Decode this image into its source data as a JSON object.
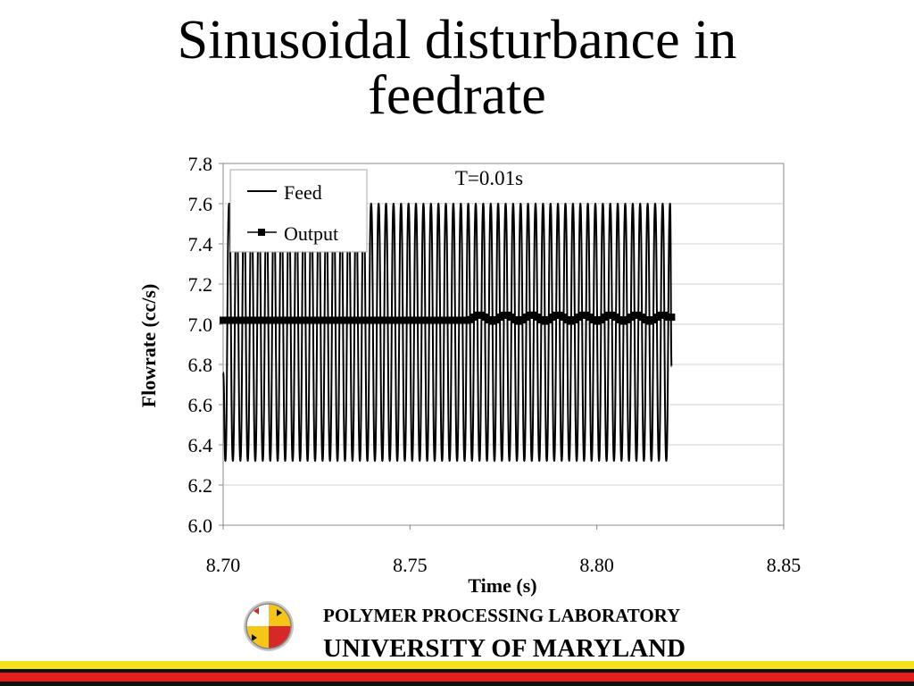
{
  "slide": {
    "title_line1": "Sinusoidal disturbance in",
    "title_line2": "feedrate"
  },
  "footer": {
    "lab": "POLYMER PROCESSING LABORATORY",
    "university": "UNIVERSITY OF MARYLAND",
    "logo_icon": "maryland-flag-seal-icon",
    "stripe_colors": [
      "#f5e11e",
      "#111111",
      "#e51d1d",
      "#111111"
    ]
  },
  "chart_data": {
    "type": "line",
    "annotation": "T=0.01s",
    "xlabel": "Time (s)",
    "ylabel": "Flowrate (cc/s)",
    "xlim": [
      8.7,
      8.85
    ],
    "ylim": [
      6.0,
      7.8
    ],
    "xticks": [
      "8.70",
      "8.75",
      "8.80",
      "8.85"
    ],
    "yticks": [
      "6.0",
      "6.2",
      "6.4",
      "6.6",
      "6.8",
      "7.0",
      "7.2",
      "7.4",
      "7.6",
      "7.8"
    ],
    "grid": "horizontal",
    "legend_position": "top-left",
    "series": [
      {
        "name": "Feed",
        "style": "line",
        "color": "#000000",
        "x": [
          8.7,
          8.7006,
          8.7016,
          8.7026,
          8.7036,
          8.7046,
          8.7056,
          8.7066,
          8.7076,
          8.7086,
          8.7096,
          8.7106,
          8.7116,
          8.7126,
          8.7136,
          8.7146,
          8.7156,
          8.7166,
          8.7176,
          8.7186,
          8.7196,
          8.7206,
          8.7216,
          8.7226,
          8.7236,
          8.7246,
          8.7256,
          8.7266,
          8.7276,
          8.7286,
          8.7296,
          8.7306,
          8.7316,
          8.7326,
          8.7336,
          8.7346,
          8.7356,
          8.7366,
          8.7376,
          8.7386,
          8.7396,
          8.7406,
          8.7416,
          8.7426,
          8.7436,
          8.7446,
          8.7456,
          8.7466,
          8.7476,
          8.7486,
          8.7496,
          8.7506,
          8.7516,
          8.7526,
          8.7536,
          8.7546,
          8.7556,
          8.7566,
          8.7576,
          8.7586,
          8.7596,
          8.7606,
          8.7616,
          8.7626,
          8.7636,
          8.7646,
          8.7656,
          8.7666,
          8.7676,
          8.7686,
          8.7696,
          8.7706,
          8.7716,
          8.7726,
          8.7736,
          8.7746,
          8.7756,
          8.7766,
          8.7776,
          8.7786,
          8.7796,
          8.7806,
          8.7816,
          8.7826,
          8.7836,
          8.7846,
          8.7856,
          8.7866,
          8.7876,
          8.7886,
          8.7896,
          8.7906,
          8.7916,
          8.7926,
          8.7936,
          8.7946,
          8.7956,
          8.7966,
          8.7976,
          8.7986,
          8.7996,
          8.8006,
          8.8016,
          8.8026,
          8.8036,
          8.8046,
          8.8056,
          8.8066,
          8.8076,
          8.8086,
          8.8096,
          8.8106,
          8.8116,
          8.8126,
          8.8136,
          8.8146,
          8.8156,
          8.8166,
          8.8176,
          8.8186,
          8.8196,
          8.82
        ],
        "y": [
          6.76,
          6.32,
          7.6,
          6.32,
          7.6,
          6.32,
          7.6,
          6.32,
          7.6,
          6.32,
          7.6,
          6.32,
          7.6,
          6.32,
          7.6,
          6.32,
          7.6,
          6.32,
          7.6,
          6.32,
          7.6,
          6.32,
          7.6,
          6.32,
          7.6,
          6.32,
          7.6,
          6.32,
          7.6,
          6.32,
          7.6,
          6.32,
          7.6,
          6.32,
          7.6,
          6.32,
          7.6,
          6.32,
          7.6,
          6.32,
          7.6,
          6.32,
          7.6,
          6.32,
          7.6,
          6.32,
          7.6,
          6.32,
          7.6,
          6.32,
          7.6,
          6.32,
          7.6,
          6.32,
          7.6,
          6.32,
          7.6,
          6.32,
          7.6,
          6.32,
          7.6,
          6.32,
          7.6,
          6.32,
          7.6,
          6.32,
          7.6,
          6.32,
          7.6,
          6.32,
          7.6,
          6.32,
          7.6,
          6.32,
          7.6,
          6.32,
          7.6,
          6.32,
          7.6,
          6.32,
          7.6,
          6.32,
          7.6,
          6.32,
          7.6,
          6.32,
          7.6,
          6.32,
          7.6,
          6.32,
          7.6,
          6.32,
          7.6,
          6.32,
          7.6,
          6.32,
          7.6,
          6.32,
          7.6,
          6.32,
          7.6,
          6.32,
          7.6,
          6.32,
          7.6,
          6.32,
          7.6,
          6.32,
          7.6,
          6.32,
          7.6,
          6.32,
          7.6,
          6.32,
          7.6,
          6.32,
          7.6,
          6.32,
          7.6,
          6.32,
          7.6,
          6.79
        ]
      },
      {
        "name": "Output",
        "style": "line-with-square-markers",
        "color": "#000000",
        "x": [
          8.7,
          8.701,
          8.702,
          8.703,
          8.704,
          8.705,
          8.706,
          8.707,
          8.708,
          8.709,
          8.71,
          8.711,
          8.712,
          8.713,
          8.714,
          8.715,
          8.716,
          8.717,
          8.718,
          8.719,
          8.72,
          8.721,
          8.722,
          8.723,
          8.724,
          8.725,
          8.726,
          8.727,
          8.728,
          8.729,
          8.73,
          8.731,
          8.732,
          8.733,
          8.734,
          8.735,
          8.736,
          8.737,
          8.738,
          8.739,
          8.74,
          8.741,
          8.742,
          8.743,
          8.744,
          8.745,
          8.746,
          8.747,
          8.748,
          8.749,
          8.75,
          8.751,
          8.752,
          8.753,
          8.754,
          8.755,
          8.756,
          8.757,
          8.758,
          8.759,
          8.76,
          8.761,
          8.762,
          8.763,
          8.764,
          8.765,
          8.766,
          8.767,
          8.768,
          8.769,
          8.77,
          8.771,
          8.772,
          8.773,
          8.774,
          8.775,
          8.776,
          8.777,
          8.778,
          8.779,
          8.78,
          8.781,
          8.782,
          8.783,
          8.784,
          8.785,
          8.786,
          8.787,
          8.788,
          8.789,
          8.79,
          8.791,
          8.792,
          8.793,
          8.794,
          8.795,
          8.796,
          8.797,
          8.798,
          8.799,
          8.8,
          8.801,
          8.802,
          8.803,
          8.804,
          8.805,
          8.806,
          8.807,
          8.808,
          8.809,
          8.81,
          8.811,
          8.812,
          8.813,
          8.814,
          8.815,
          8.816,
          8.817,
          8.818,
          8.819,
          8.82
        ],
        "y": [
          7.02,
          7.02,
          7.02,
          7.02,
          7.02,
          7.02,
          7.02,
          7.02,
          7.02,
          7.02,
          7.02,
          7.02,
          7.02,
          7.02,
          7.02,
          7.02,
          7.02,
          7.02,
          7.02,
          7.02,
          7.02,
          7.02,
          7.02,
          7.02,
          7.02,
          7.02,
          7.02,
          7.02,
          7.02,
          7.02,
          7.02,
          7.02,
          7.02,
          7.02,
          7.02,
          7.02,
          7.02,
          7.02,
          7.02,
          7.02,
          7.02,
          7.02,
          7.02,
          7.02,
          7.02,
          7.02,
          7.02,
          7.02,
          7.02,
          7.02,
          7.02,
          7.02,
          7.02,
          7.02,
          7.02,
          7.02,
          7.02,
          7.02,
          7.02,
          7.02,
          7.02,
          7.02,
          7.02,
          7.02,
          7.02,
          7.02,
          7.023,
          7.035,
          7.045,
          7.045,
          7.035,
          7.022,
          7.015,
          7.022,
          7.035,
          7.045,
          7.045,
          7.035,
          7.022,
          7.015,
          7.022,
          7.035,
          7.045,
          7.045,
          7.035,
          7.022,
          7.015,
          7.022,
          7.035,
          7.045,
          7.045,
          7.035,
          7.022,
          7.015,
          7.022,
          7.035,
          7.045,
          7.045,
          7.035,
          7.022,
          7.015,
          7.022,
          7.035,
          7.045,
          7.045,
          7.035,
          7.022,
          7.015,
          7.022,
          7.035,
          7.045,
          7.045,
          7.035,
          7.022,
          7.015,
          7.022,
          7.035,
          7.045,
          7.045,
          7.035,
          7.035
        ]
      }
    ]
  }
}
